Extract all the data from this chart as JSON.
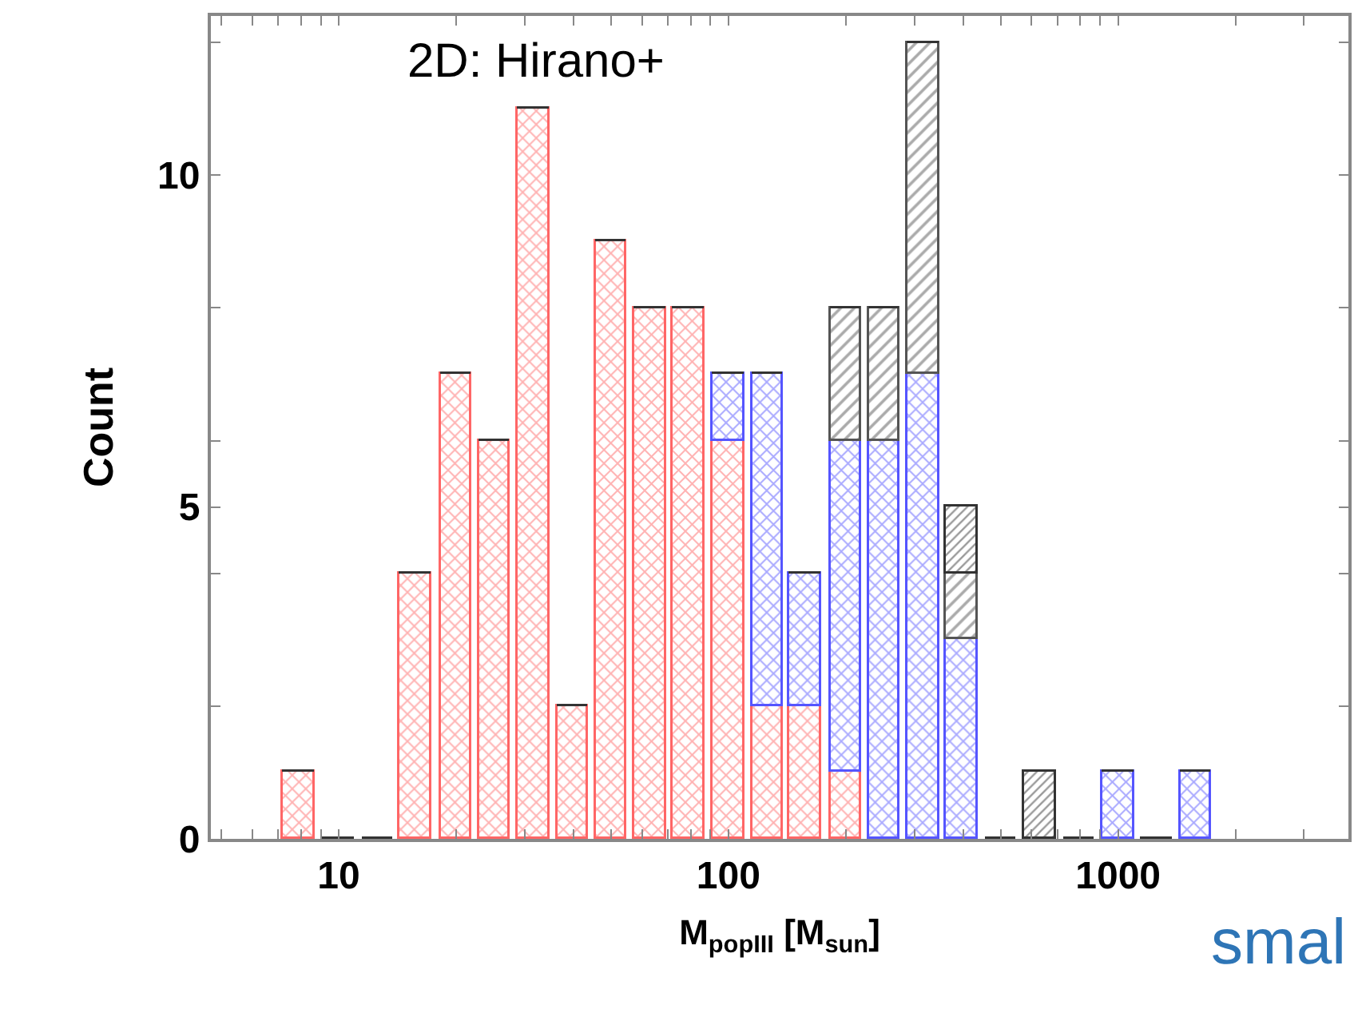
{
  "chart_data": {
    "type": "bar",
    "stacked": true,
    "log": "x",
    "xlabel": "M$_{popIII}$ [M$_{sun}$]",
    "ylabel": "Count",
    "annotations": [
      "2D: Hirano+",
      "smal"
    ],
    "x": [
      7.9,
      10,
      12.6,
      15.8,
      20,
      25.1,
      31.6,
      39.8,
      50,
      63,
      79,
      100,
      126,
      158,
      200,
      251,
      316,
      398,
      501,
      631,
      794,
      1000,
      1259,
      1585
    ],
    "series": [
      {
        "color": "#ff6666",
        "values": [
          1,
          0,
          0,
          4,
          7,
          6,
          11,
          2,
          9,
          8,
          8,
          6,
          2,
          2,
          1,
          0,
          0,
          0,
          0,
          0,
          0,
          0,
          0,
          0
        ]
      },
      {
        "color": "#5555ff",
        "values": [
          0,
          0,
          0,
          0,
          0,
          0,
          0,
          0,
          0,
          0,
          0,
          1,
          5,
          2,
          5,
          6,
          7,
          3,
          0,
          0,
          0,
          1,
          0,
          1
        ]
      },
      {
        "color": "#555555",
        "values": [
          0,
          0,
          0,
          0,
          0,
          0,
          0,
          0,
          0,
          0,
          0,
          0,
          0,
          0,
          2,
          2,
          5,
          1,
          0,
          0,
          0,
          0,
          0,
          0
        ]
      },
      {
        "color": "#333333",
        "values": [
          0,
          0,
          0,
          0,
          0,
          0,
          0,
          0,
          0,
          0,
          0,
          0,
          0,
          0,
          0,
          0,
          0,
          1,
          0,
          1,
          0,
          0,
          0,
          0
        ]
      }
    ],
    "xlim": [
      4.7,
      3900
    ],
    "ylim": [
      0,
      12.4
    ],
    "xticks": [
      {
        "value": 5,
        "label": null
      },
      {
        "value": 6,
        "label": null
      },
      {
        "value": 7,
        "label": null
      },
      {
        "value": 8,
        "label": null
      },
      {
        "value": 9,
        "label": null
      },
      10,
      {
        "value": 20,
        "label": null
      },
      {
        "value": 30,
        "label": null
      },
      {
        "value": 40,
        "label": null
      },
      {
        "value": 50,
        "label": null
      },
      {
        "value": 60,
        "label": null
      },
      {
        "value": 70,
        "label": null
      },
      {
        "value": 80,
        "label": null
      },
      {
        "value": 90,
        "label": null
      },
      100,
      {
        "value": 200,
        "label": null
      },
      {
        "value": 300,
        "label": null
      },
      {
        "value": 400,
        "label": null
      },
      {
        "value": 500,
        "label": null
      },
      {
        "value": 600,
        "label": null
      },
      {
        "value": 700,
        "label": null
      },
      {
        "value": 800,
        "label": null
      },
      {
        "value": 900,
        "label": null
      },
      1000,
      {
        "value": 2000,
        "label": null
      },
      {
        "value": 3000,
        "label": null
      }
    ],
    "yticks": [
      0,
      {
        "value": 2,
        "label": null
      },
      {
        "value": 4,
        "label": null
      },
      5,
      {
        "value": 6,
        "label": null
      },
      {
        "value": 8,
        "label": null
      },
      10,
      {
        "value": 12,
        "label": null
      }
    ],
    "tick_labels": [
      "x",
      "y"
    ]
  }
}
